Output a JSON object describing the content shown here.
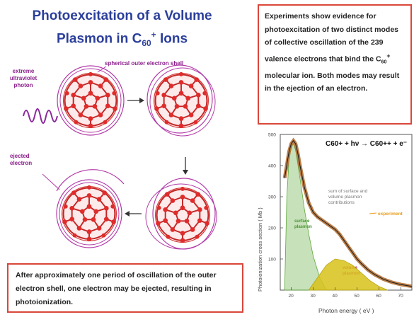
{
  "title": {
    "line1": "Photoexcitation of a Volume",
    "line2_prefix": "Plasmon in C",
    "line2_sub": "60",
    "line2_sup": "+",
    "line2_suffix": " Ions"
  },
  "labels": {
    "shell": "spherical outer electron shell",
    "photon": [
      "extreme",
      "ultraviolet",
      "photon"
    ],
    "ejected": [
      "ejected",
      "electron"
    ]
  },
  "top_text": {
    "pre": "Experiments show evidence for photoexcitation of two distinct modes of collective oscillation of the 239 valence electrons that bind the C",
    "sub": "60",
    "sup": "+",
    "post": " molecular ion. Both modes may result in the ejection of an electron."
  },
  "bottom_text": "After approximately one period of oscillation of the outer electron shell, one electron may be ejected, resulting in photoionization.",
  "chart_data": {
    "type": "line",
    "equation": "C60+ + hν → C60++ + e⁻",
    "xlabel": "Photon energy  ( eV )",
    "ylabel": "Photoionization cross section  ( Mb )",
    "xlim": [
      15,
      75
    ],
    "ylim": [
      0,
      500
    ],
    "xticks": [
      "20",
      "30",
      "40",
      "50",
      "60",
      "70"
    ],
    "yticks": [
      "100",
      "200",
      "300",
      "400",
      "500"
    ],
    "annotations": {
      "sum": [
        "sum of surface and",
        "volume plasmon",
        "contributions"
      ],
      "experiment": "experiment",
      "surface": [
        "surface",
        "plasmon"
      ],
      "volume": [
        "volume",
        "plasmon"
      ]
    },
    "series": [
      {
        "x": [
          17,
          19,
          20,
          21,
          22,
          23,
          24,
          26,
          28,
          30,
          32,
          34,
          36,
          38,
          40,
          42,
          44,
          46,
          48,
          50,
          52,
          55,
          58,
          62,
          66,
          70,
          75
        ],
        "y": [
          360,
          445,
          470,
          480,
          470,
          440,
          400,
          330,
          280,
          250,
          235,
          225,
          215,
          205,
          195,
          180,
          160,
          140,
          120,
          100,
          85,
          65,
          50,
          35,
          25,
          18,
          12
        ]
      }
    ],
    "colors": {
      "experiment": "#b0682a",
      "fit": "#1b1b1b",
      "surface": "#5ea83a",
      "volume": "#d8c21a",
      "accent": "#e89b1a"
    }
  }
}
